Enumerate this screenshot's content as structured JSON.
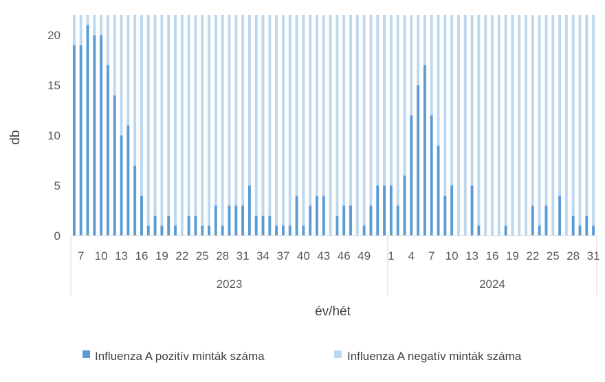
{
  "chart_data": {
    "type": "bar",
    "stacked": true,
    "xlabel": "év/hét",
    "ylabel": "db",
    "ylim": [
      0,
      22
    ],
    "yticks": [
      0,
      5,
      10,
      15,
      20
    ],
    "grid": false,
    "legend_position": "bottom",
    "groups": [
      {
        "label": "2023",
        "weeks": [
          6,
          7,
          8,
          9,
          10,
          11,
          12,
          13,
          14,
          15,
          16,
          17,
          18,
          19,
          20,
          21,
          22,
          23,
          24,
          25,
          26,
          27,
          28,
          29,
          30,
          31,
          32,
          33,
          34,
          35,
          36,
          37,
          38,
          39,
          40,
          41,
          42,
          43,
          44,
          45,
          46,
          47,
          48,
          49,
          50,
          51,
          52
        ],
        "tick_labels": [
          "7",
          "10",
          "13",
          "16",
          "19",
          "22",
          "25",
          "28",
          "31",
          "34",
          "37",
          "40",
          "43",
          "46",
          "49"
        ],
        "tick_weeks": [
          7,
          10,
          13,
          16,
          19,
          22,
          25,
          28,
          31,
          34,
          37,
          40,
          43,
          46,
          49
        ]
      },
      {
        "label": "2024",
        "weeks": [
          1,
          2,
          3,
          4,
          5,
          6,
          7,
          8,
          9,
          10,
          11,
          12,
          13,
          14,
          15,
          16,
          17,
          18,
          19,
          20,
          21,
          22,
          23,
          24,
          25,
          26,
          27,
          28,
          29,
          30,
          31
        ],
        "tick_labels": [
          "1",
          "4",
          "7",
          "10",
          "13",
          "16",
          "19",
          "22",
          "25",
          "28",
          "31"
        ],
        "tick_weeks": [
          1,
          4,
          7,
          10,
          13,
          16,
          19,
          22,
          25,
          28,
          31
        ]
      }
    ],
    "series": [
      {
        "name": "Influenza A pozitív minták száma",
        "color": "#5b9bd5",
        "values": [
          19,
          19,
          21,
          20,
          20,
          17,
          14,
          10,
          11,
          7,
          4,
          1,
          2,
          1,
          2,
          1,
          0,
          2,
          2,
          1,
          1,
          3,
          1,
          3,
          3,
          3,
          5,
          2,
          2,
          2,
          1,
          1,
          1,
          4,
          1,
          3,
          4,
          4,
          0,
          2,
          3,
          3,
          0,
          1,
          3,
          5,
          5,
          5,
          3,
          6,
          12,
          15,
          17,
          12,
          9,
          4,
          5,
          0,
          0,
          5,
          1,
          0,
          0,
          0,
          1,
          0,
          0,
          0,
          3,
          1,
          3,
          0,
          4,
          0,
          2,
          1,
          2,
          1
        ]
      },
      {
        "name": "Influenza A negatív minták száma",
        "color": "#bdd7ee",
        "values": [
          3,
          3,
          1,
          2,
          2,
          5,
          8,
          12,
          11,
          15,
          18,
          21,
          20,
          21,
          20,
          21,
          22,
          20,
          20,
          21,
          21,
          19,
          21,
          19,
          19,
          19,
          17,
          20,
          20,
          20,
          21,
          21,
          21,
          18,
          21,
          19,
          18,
          18,
          22,
          20,
          19,
          19,
          22,
          21,
          19,
          17,
          17,
          17,
          19,
          16,
          10,
          7,
          5,
          10,
          13,
          18,
          17,
          22,
          22,
          17,
          21,
          22,
          22,
          22,
          21,
          22,
          22,
          22,
          19,
          21,
          19,
          22,
          18,
          22,
          20,
          21,
          20,
          21
        ]
      }
    ]
  }
}
